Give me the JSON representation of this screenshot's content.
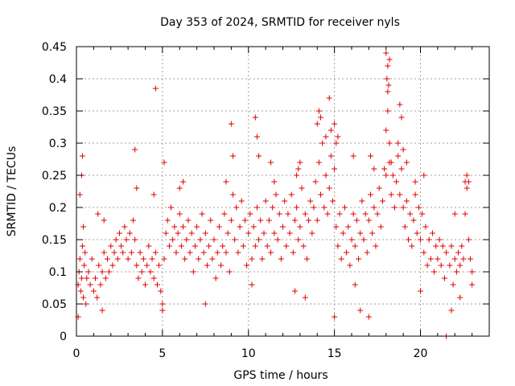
{
  "chart_data": {
    "type": "scatter",
    "title": "Day 353 of 2024, SRMTID for receiver nyls",
    "xlabel": "GPS time / hours",
    "ylabel": "SRMTID / TECUs",
    "xlim": [
      0,
      24
    ],
    "ylim": [
      0,
      0.45
    ],
    "x_ticks": [
      0,
      5,
      10,
      15,
      20
    ],
    "x_tick_labels": [
      "0",
      "5",
      "10",
      "15",
      "20"
    ],
    "y_ticks": [
      0,
      0.05,
      0.1,
      0.15,
      0.2,
      0.25,
      0.3,
      0.35,
      0.4,
      0.45
    ],
    "y_tick_labels": [
      "0",
      "0.05",
      "0.1",
      "0.15",
      "0.2",
      "0.25",
      "0.3",
      "0.35",
      "0.4",
      "0.45"
    ],
    "grid": true,
    "marker": "plus",
    "marker_color": "#e00000",
    "series": [
      {
        "name": "SRMTID",
        "points": [
          [
            0.1,
            0.08
          ],
          [
            0.15,
            0.1
          ],
          [
            0.2,
            0.12
          ],
          [
            0.25,
            0.07
          ],
          [
            0.3,
            0.09
          ],
          [
            0.35,
            0.14
          ],
          [
            0.4,
            0.06
          ],
          [
            0.45,
            0.11
          ],
          [
            0.5,
            0.13
          ],
          [
            0.55,
            0.05
          ],
          [
            0.6,
            0.09
          ],
          [
            0.7,
            0.1
          ],
          [
            0.8,
            0.08
          ],
          [
            0.9,
            0.12
          ],
          [
            1.0,
            0.07
          ],
          [
            1.1,
            0.09
          ],
          [
            1.2,
            0.06
          ],
          [
            1.3,
            0.11
          ],
          [
            1.4,
            0.08
          ],
          [
            1.5,
            0.1
          ],
          [
            1.6,
            0.13
          ],
          [
            1.7,
            0.09
          ],
          [
            1.8,
            0.12
          ],
          [
            1.9,
            0.1
          ],
          [
            2.0,
            0.14
          ],
          [
            2.1,
            0.11
          ],
          [
            2.2,
            0.13
          ],
          [
            2.3,
            0.15
          ],
          [
            2.4,
            0.12
          ],
          [
            2.5,
            0.16
          ],
          [
            2.6,
            0.14
          ],
          [
            2.7,
            0.13
          ],
          [
            2.8,
            0.17
          ],
          [
            2.9,
            0.15
          ],
          [
            3.0,
            0.12
          ],
          [
            3.1,
            0.16
          ],
          [
            3.2,
            0.13
          ],
          [
            3.3,
            0.18
          ],
          [
            3.4,
            0.15
          ],
          [
            3.5,
            0.11
          ],
          [
            3.6,
            0.09
          ],
          [
            3.7,
            0.13
          ],
          [
            3.8,
            0.1
          ],
          [
            3.9,
            0.12
          ],
          [
            4.0,
            0.08
          ],
          [
            4.1,
            0.11
          ],
          [
            4.2,
            0.14
          ],
          [
            4.3,
            0.1
          ],
          [
            4.4,
            0.12
          ],
          [
            4.5,
            0.09
          ],
          [
            4.6,
            0.13
          ],
          [
            4.7,
            0.08
          ],
          [
            4.8,
            0.11
          ],
          [
            4.9,
            0.07
          ],
          [
            5.0,
            0.05
          ],
          [
            5.1,
            0.12
          ],
          [
            5.2,
            0.16
          ],
          [
            5.3,
            0.18
          ],
          [
            5.4,
            0.14
          ],
          [
            5.5,
            0.2
          ],
          [
            5.6,
            0.15
          ],
          [
            5.7,
            0.17
          ],
          [
            5.8,
            0.13
          ],
          [
            5.9,
            0.16
          ],
          [
            6.0,
            0.19
          ],
          [
            6.1,
            0.14
          ],
          [
            6.2,
            0.17
          ],
          [
            6.3,
            0.12
          ],
          [
            6.4,
            0.15
          ],
          [
            6.5,
            0.18
          ],
          [
            6.6,
            0.13
          ],
          [
            6.7,
            0.16
          ],
          [
            6.8,
            0.1
          ],
          [
            6.9,
            0.14
          ],
          [
            7.0,
            0.17
          ],
          [
            7.1,
            0.12
          ],
          [
            7.2,
            0.15
          ],
          [
            7.3,
            0.19
          ],
          [
            7.4,
            0.13
          ],
          [
            7.5,
            0.16
          ],
          [
            7.6,
            0.11
          ],
          [
            7.7,
            0.14
          ],
          [
            7.8,
            0.18
          ],
          [
            7.9,
            0.12
          ],
          [
            8.0,
            0.15
          ],
          [
            8.1,
            0.09
          ],
          [
            8.2,
            0.13
          ],
          [
            8.3,
            0.17
          ],
          [
            8.4,
            0.11
          ],
          [
            8.5,
            0.14
          ],
          [
            8.6,
            0.19
          ],
          [
            8.7,
            0.13
          ],
          [
            8.8,
            0.16
          ],
          [
            8.9,
            0.1
          ],
          [
            9.0,
            0.18
          ],
          [
            9.1,
            0.22
          ],
          [
            9.2,
            0.15
          ],
          [
            9.3,
            0.2
          ],
          [
            9.4,
            0.13
          ],
          [
            9.5,
            0.17
          ],
          [
            9.6,
            0.21
          ],
          [
            9.7,
            0.14
          ],
          [
            9.8,
            0.18
          ],
          [
            9.9,
            0.11
          ],
          [
            10.0,
            0.16
          ],
          [
            10.1,
            0.19
          ],
          [
            10.2,
            0.12
          ],
          [
            10.3,
            0.17
          ],
          [
            10.4,
            0.14
          ],
          [
            10.5,
            0.2
          ],
          [
            10.6,
            0.15
          ],
          [
            10.7,
            0.18
          ],
          [
            10.8,
            0.12
          ],
          [
            10.9,
            0.16
          ],
          [
            11.0,
            0.21
          ],
          [
            11.1,
            0.14
          ],
          [
            11.2,
            0.18
          ],
          [
            11.3,
            0.13
          ],
          [
            11.4,
            0.2
          ],
          [
            11.5,
            0.16
          ],
          [
            11.6,
            0.22
          ],
          [
            11.7,
            0.15
          ],
          [
            11.8,
            0.19
          ],
          [
            11.9,
            0.12
          ],
          [
            12.0,
            0.17
          ],
          [
            12.1,
            0.21
          ],
          [
            12.2,
            0.14
          ],
          [
            12.3,
            0.19
          ],
          [
            12.4,
            0.16
          ],
          [
            12.5,
            0.22
          ],
          [
            12.6,
            0.13
          ],
          [
            12.7,
            0.18
          ],
          [
            12.8,
            0.2
          ],
          [
            12.9,
            0.15
          ],
          [
            13.0,
            0.17
          ],
          [
            13.1,
            0.23
          ],
          [
            13.2,
            0.14
          ],
          [
            13.3,
            0.19
          ],
          [
            13.4,
            0.12
          ],
          [
            13.5,
            0.18
          ],
          [
            13.6,
            0.21
          ],
          [
            13.7,
            0.16
          ],
          [
            13.8,
            0.2
          ],
          [
            13.9,
            0.24
          ],
          [
            14.0,
            0.18
          ],
          [
            14.1,
            0.27
          ],
          [
            14.2,
            0.22
          ],
          [
            14.3,
            0.3
          ],
          [
            14.4,
            0.2
          ],
          [
            14.5,
            0.25
          ],
          [
            14.6,
            0.19
          ],
          [
            14.7,
            0.23
          ],
          [
            14.8,
            0.28
          ],
          [
            14.9,
            0.21
          ],
          [
            15.0,
            0.26
          ],
          [
            15.1,
            0.17
          ],
          [
            15.2,
            0.14
          ],
          [
            15.3,
            0.19
          ],
          [
            15.4,
            0.12
          ],
          [
            15.5,
            0.16
          ],
          [
            15.6,
            0.2
          ],
          [
            15.7,
            0.13
          ],
          [
            15.8,
            0.17
          ],
          [
            15.9,
            0.11
          ],
          [
            16.0,
            0.15
          ],
          [
            16.1,
            0.19
          ],
          [
            16.2,
            0.14
          ],
          [
            16.3,
            0.18
          ],
          [
            16.4,
            0.12
          ],
          [
            16.5,
            0.16
          ],
          [
            16.6,
            0.21
          ],
          [
            16.7,
            0.15
          ],
          [
            16.8,
            0.19
          ],
          [
            16.9,
            0.13
          ],
          [
            17.0,
            0.18
          ],
          [
            17.1,
            0.22
          ],
          [
            17.2,
            0.16
          ],
          [
            17.3,
            0.2
          ],
          [
            17.4,
            0.14
          ],
          [
            17.5,
            0.19
          ],
          [
            17.6,
            0.23
          ],
          [
            17.7,
            0.17
          ],
          [
            17.8,
            0.21
          ],
          [
            17.9,
            0.26
          ],
          [
            18.0,
            0.32
          ],
          [
            18.1,
            0.38
          ],
          [
            18.2,
            0.27
          ],
          [
            18.3,
            0.22
          ],
          [
            18.4,
            0.25
          ],
          [
            18.5,
            0.2
          ],
          [
            18.6,
            0.24
          ],
          [
            18.7,
            0.28
          ],
          [
            18.8,
            0.22
          ],
          [
            18.9,
            0.26
          ],
          [
            19.0,
            0.2
          ],
          [
            19.1,
            0.17
          ],
          [
            19.2,
            0.21
          ],
          [
            19.3,
            0.15
          ],
          [
            19.4,
            0.19
          ],
          [
            19.5,
            0.14
          ],
          [
            19.6,
            0.18
          ],
          [
            19.7,
            0.22
          ],
          [
            19.8,
            0.16
          ],
          [
            19.9,
            0.2
          ],
          [
            20.0,
            0.15
          ],
          [
            20.1,
            0.19
          ],
          [
            20.2,
            0.13
          ],
          [
            20.3,
            0.17
          ],
          [
            20.4,
            0.11
          ],
          [
            20.5,
            0.15
          ],
          [
            20.6,
            0.12
          ],
          [
            20.7,
            0.16
          ],
          [
            20.8,
            0.1
          ],
          [
            20.9,
            0.14
          ],
          [
            21.0,
            0.12
          ],
          [
            21.1,
            0.15
          ],
          [
            21.2,
            0.11
          ],
          [
            21.3,
            0.14
          ],
          [
            21.4,
            0.09
          ],
          [
            21.5,
            0.13
          ],
          [
            21.7,
            0.11
          ],
          [
            21.8,
            0.14
          ],
          [
            21.9,
            0.08
          ],
          [
            22.0,
            0.12
          ],
          [
            22.1,
            0.1
          ],
          [
            22.2,
            0.13
          ],
          [
            22.3,
            0.11
          ],
          [
            22.4,
            0.14
          ],
          [
            22.5,
            0.12
          ],
          [
            22.6,
            0.19
          ],
          [
            22.7,
            0.23
          ],
          [
            22.8,
            0.15
          ],
          [
            22.9,
            0.12
          ],
          [
            23.0,
            0.1
          ],
          [
            0.1,
            0.03
          ],
          [
            0.2,
            0.22
          ],
          [
            0.3,
            0.25
          ],
          [
            0.35,
            0.28
          ],
          [
            0.4,
            0.17
          ],
          [
            1.25,
            0.19
          ],
          [
            1.5,
            0.04
          ],
          [
            1.6,
            0.18
          ],
          [
            3.4,
            0.29
          ],
          [
            3.5,
            0.23
          ],
          [
            4.6,
            0.385
          ],
          [
            4.5,
            0.22
          ],
          [
            5.1,
            0.27
          ],
          [
            5.0,
            0.04
          ],
          [
            6.0,
            0.23
          ],
          [
            6.2,
            0.24
          ],
          [
            7.5,
            0.05
          ],
          [
            8.7,
            0.24
          ],
          [
            9.0,
            0.33
          ],
          [
            9.1,
            0.28
          ],
          [
            10.4,
            0.34
          ],
          [
            10.5,
            0.31
          ],
          [
            10.6,
            0.28
          ],
          [
            10.2,
            0.08
          ],
          [
            11.3,
            0.27
          ],
          [
            11.5,
            0.24
          ],
          [
            12.8,
            0.25
          ],
          [
            12.9,
            0.26
          ],
          [
            13.0,
            0.27
          ],
          [
            12.7,
            0.07
          ],
          [
            13.3,
            0.06
          ],
          [
            14.0,
            0.33
          ],
          [
            14.1,
            0.35
          ],
          [
            14.2,
            0.34
          ],
          [
            14.5,
            0.31
          ],
          [
            14.7,
            0.37
          ],
          [
            14.8,
            0.32
          ],
          [
            15.0,
            0.33
          ],
          [
            15.1,
            0.3
          ],
          [
            15.2,
            0.31
          ],
          [
            15.0,
            0.03
          ],
          [
            16.1,
            0.28
          ],
          [
            16.5,
            0.04
          ],
          [
            16.2,
            0.08
          ],
          [
            17.1,
            0.28
          ],
          [
            17.3,
            0.26
          ],
          [
            17.0,
            0.03
          ],
          [
            18.0,
            0.44
          ],
          [
            18.1,
            0.42
          ],
          [
            18.2,
            0.43
          ],
          [
            18.05,
            0.4
          ],
          [
            18.15,
            0.39
          ],
          [
            18.1,
            0.35
          ],
          [
            18.0,
            0.25
          ],
          [
            18.2,
            0.3
          ],
          [
            18.3,
            0.27
          ],
          [
            18.8,
            0.36
          ],
          [
            18.9,
            0.34
          ],
          [
            18.7,
            0.3
          ],
          [
            19.0,
            0.29
          ],
          [
            19.2,
            0.27
          ],
          [
            19.7,
            0.24
          ],
          [
            20.0,
            0.07
          ],
          [
            20.2,
            0.25
          ],
          [
            21.5,
            0.0
          ],
          [
            21.8,
            0.04
          ],
          [
            22.0,
            0.19
          ],
          [
            22.6,
            0.24
          ],
          [
            22.7,
            0.25
          ],
          [
            22.8,
            0.24
          ],
          [
            22.3,
            0.06
          ],
          [
            23.0,
            0.08
          ]
        ]
      }
    ]
  }
}
